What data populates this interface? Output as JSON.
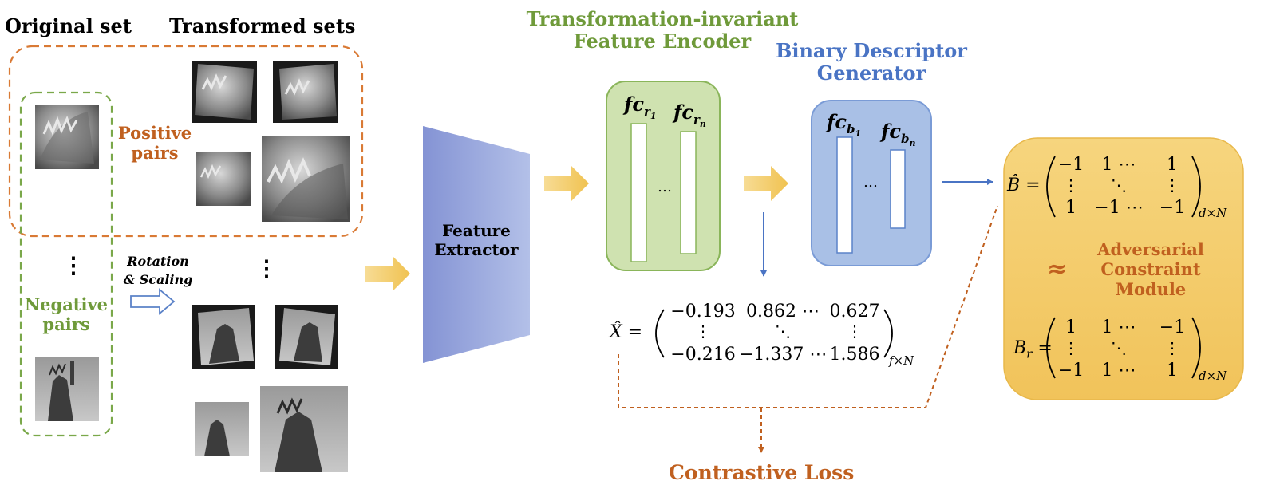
{
  "headers": {
    "original_set": "Original set",
    "transformed_sets": "Transformed sets"
  },
  "pairs": {
    "positive": [
      "Positive",
      "pairs"
    ],
    "negative": [
      "Negative",
      "pairs"
    ],
    "ellipsis": "⋮"
  },
  "transform": {
    "line1": "Rotation",
    "line2": "& Scaling"
  },
  "feature_extractor": [
    "Feature",
    "Extractor"
  ],
  "encoder": {
    "title": [
      "Transformation-invariant",
      "Feature Encoder"
    ],
    "fc_first": "fc",
    "fc_first_sub": "r",
    "fc_first_subsub": "1",
    "fc_last": "fc",
    "fc_last_sub": "r",
    "fc_last_subsub": "n",
    "dots": "…"
  },
  "generator": {
    "title": [
      "Binary Descriptor",
      "Generator"
    ],
    "fc_first": "fc",
    "fc_first_sub": "b",
    "fc_first_subsub": "1",
    "fc_last": "fc",
    "fc_last_sub": "b",
    "fc_last_subsub": "n",
    "dots": "…"
  },
  "x_hat": {
    "symbol": "X̂ =",
    "row1": [
      "−0.193",
      "0.862 ⋯",
      "0.627"
    ],
    "row2": [
      "⋮",
      "⋱",
      "⋮"
    ],
    "row3": [
      "−0.216",
      "−1.337 ⋯",
      "1.586"
    ],
    "dims": "f×N"
  },
  "b_hat": {
    "symbol": "B̂ =",
    "row1": [
      "−1",
      "1 ⋯",
      "1"
    ],
    "row2": [
      "⋮",
      "⋱",
      "⋮"
    ],
    "row3": [
      "1",
      "−1 ⋯",
      "−1"
    ],
    "dims": "d×N"
  },
  "b_r": {
    "symbol": "B",
    "sub": "r",
    "eq": "=",
    "row1": [
      "1",
      "1 ⋯",
      "−1"
    ],
    "row2": [
      "⋮",
      "⋱",
      "⋮"
    ],
    "row3": [
      "−1",
      "1 ⋯",
      "1"
    ],
    "dims": "d×N"
  },
  "adversarial": {
    "approx": "≈",
    "label": [
      "Adversarial",
      "Constraint",
      "Module"
    ]
  },
  "loss": "Contrastive Loss",
  "colors": {
    "orange": "#c0601f",
    "green": "#6f9a3a",
    "blue": "#4a74c4",
    "encoder_fill": "#cfe2b0",
    "generator_fill": "#a9c0e6",
    "module_fill": "#f3c863",
    "arrow_fill": "#f3cc6a"
  }
}
